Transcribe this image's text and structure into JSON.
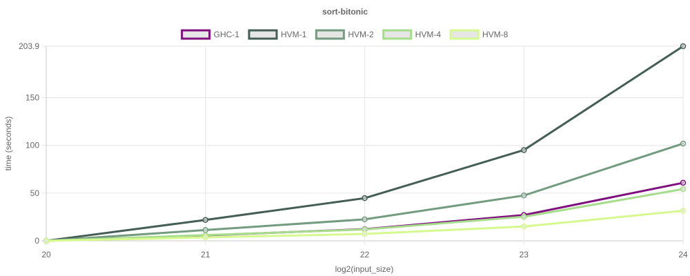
{
  "chart_data": {
    "type": "line",
    "title": "sort-bitonic",
    "xlabel": "log2(input_size)",
    "ylabel": "time (seconds)",
    "x": [
      20,
      21,
      22,
      23,
      24
    ],
    "x_ticks": [
      "20",
      "21",
      "22",
      "23",
      "24"
    ],
    "y_ticks": [
      "0",
      "50",
      "100",
      "150",
      "203.9"
    ],
    "xlim": [
      20,
      24
    ],
    "ylim": [
      0,
      203.9
    ],
    "grid": true,
    "legend_position": "top",
    "series": [
      {
        "name": "GHC-1",
        "color": "#7f0f7e",
        "values": [
          0,
          5.7,
          12.2,
          27.0,
          60.8
        ]
      },
      {
        "name": "HVM-1",
        "color": "#445e55",
        "values": [
          0,
          21.9,
          44.7,
          95.1,
          203.9
        ]
      },
      {
        "name": "HVM-2",
        "color": "#729b7f",
        "values": [
          0,
          11.3,
          22.5,
          47.5,
          101.9
        ]
      },
      {
        "name": "HVM-4",
        "color": "#a6dc8c",
        "values": [
          0,
          6.0,
          11.9,
          25.2,
          54.2
        ]
      },
      {
        "name": "HVM-8",
        "color": "#d6f98f",
        "values": [
          0,
          3.6,
          7.2,
          15.0,
          31.5
        ]
      }
    ]
  }
}
